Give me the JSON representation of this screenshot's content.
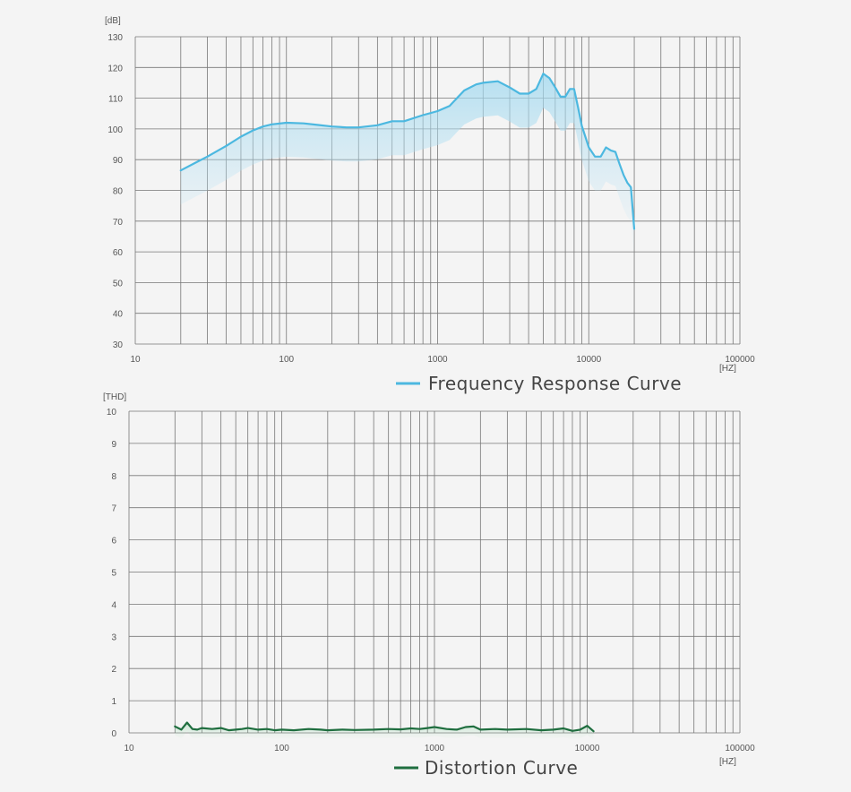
{
  "chart_data": [
    {
      "type": "line",
      "xscale": "log",
      "xlim": [
        10,
        100000
      ],
      "ylim": [
        30,
        130
      ],
      "x_ticks": [
        "10",
        "100",
        "1000",
        "10000",
        "100000"
      ],
      "y_ticks": [
        "30",
        "40",
        "50",
        "60",
        "70",
        "80",
        "90",
        "100",
        "110",
        "120",
        "130"
      ],
      "y_unit": "[dB]",
      "x_unit": "[HZ]",
      "grid": true,
      "legend_position": "bottom-right",
      "series": [
        {
          "name": "Frequency Response Curve",
          "color": "#4cb8e0",
          "x": [
            20,
            25,
            30,
            40,
            50,
            60,
            70,
            80,
            100,
            130,
            160,
            200,
            250,
            300,
            400,
            500,
            600,
            800,
            1000,
            1200,
            1500,
            1800,
            2000,
            2500,
            3000,
            3500,
            4000,
            4500,
            5000,
            5500,
            6000,
            6500,
            7000,
            7500,
            8000,
            8500,
            9000,
            10000,
            11000,
            12000,
            13000,
            14000,
            15000,
            16000,
            17000,
            18000,
            19000,
            20000
          ],
          "y": [
            86.5,
            89,
            91,
            94.5,
            97.5,
            99.5,
            100.8,
            101.5,
            102,
            101.8,
            101.3,
            100.8,
            100.5,
            100.5,
            101.2,
            102.5,
            102.5,
            104.5,
            105.8,
            107.5,
            112.5,
            114.5,
            115,
            115.5,
            113.5,
            111.5,
            111.5,
            113,
            118,
            116.5,
            113.5,
            110.5,
            110.5,
            113,
            113,
            107,
            101,
            94,
            91,
            91,
            94,
            93,
            92.5,
            88.5,
            85,
            82.5,
            81,
            67.5
          ]
        }
      ]
    },
    {
      "type": "line",
      "xscale": "log",
      "xlim": [
        10,
        100000
      ],
      "ylim": [
        0,
        10
      ],
      "x_ticks": [
        "10",
        "100",
        "1000",
        "10000",
        "100000"
      ],
      "y_ticks": [
        "0",
        "1",
        "2",
        "3",
        "4",
        "5",
        "6",
        "7",
        "8",
        "9",
        "10"
      ],
      "y_unit": "[THD]",
      "x_unit": "[HZ]",
      "grid": true,
      "legend_position": "bottom-center",
      "series": [
        {
          "name": "Distortion Curve",
          "color": "#1f6e3f",
          "x": [
            20,
            22,
            24,
            26,
            28,
            30,
            35,
            40,
            45,
            50,
            55,
            60,
            70,
            80,
            90,
            100,
            120,
            150,
            180,
            200,
            250,
            300,
            400,
            500,
            600,
            700,
            800,
            900,
            1000,
            1200,
            1400,
            1600,
            1800,
            2000,
            2500,
            3000,
            4000,
            5000,
            6000,
            7000,
            8000,
            9000,
            10000,
            11000
          ],
          "y": [
            0.2,
            0.1,
            0.32,
            0.12,
            0.1,
            0.15,
            0.12,
            0.15,
            0.08,
            0.1,
            0.12,
            0.15,
            0.1,
            0.12,
            0.08,
            0.1,
            0.08,
            0.12,
            0.1,
            0.08,
            0.1,
            0.09,
            0.1,
            0.12,
            0.11,
            0.14,
            0.12,
            0.15,
            0.18,
            0.12,
            0.1,
            0.18,
            0.2,
            0.1,
            0.12,
            0.1,
            0.12,
            0.08,
            0.1,
            0.14,
            0.06,
            0.1,
            0.22,
            0.05
          ]
        }
      ]
    }
  ]
}
